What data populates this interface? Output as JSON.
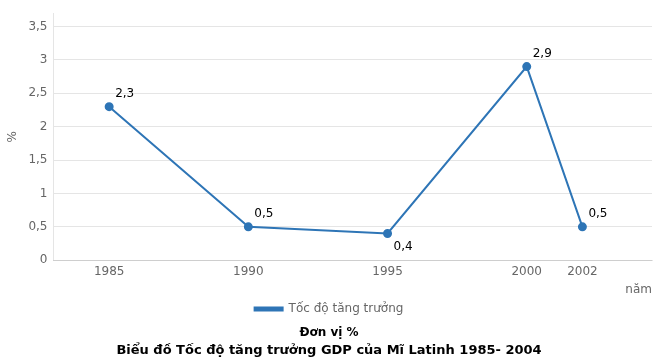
{
  "chart_data": {
    "type": "line",
    "title": "Biểu đồ Tốc độ tăng trưởng GDP của Mĩ Latinh 1985- 2004",
    "subtitle": "Đơn vị %",
    "xlabel": "năm",
    "ylabel": "%",
    "x": [
      1985,
      1990,
      1995,
      2000,
      2002
    ],
    "series": [
      {
        "name": "Tốc độ tăng trưởng",
        "color": "#2E75B6",
        "marker": "circle",
        "values": [
          2.3,
          0.5,
          0.4,
          2.9,
          0.5
        ],
        "value_labels": [
          "2,3",
          "0,5",
          "0,4",
          "2,9",
          "0,5"
        ]
      }
    ],
    "data_labels": true,
    "xlim": [
      1983,
      2004.5
    ],
    "xticks": [
      1985,
      1990,
      1995,
      2000,
      2002
    ],
    "ylim": [
      0,
      3.7
    ],
    "yticks": [
      0,
      {
        "value": 0.5,
        "label": "0,5"
      },
      1,
      {
        "value": 1.5,
        "label": "1,5"
      },
      2,
      {
        "value": 2.5,
        "label": "2,5"
      },
      3,
      {
        "value": 3.5,
        "label": "3,5"
      }
    ],
    "grid": "y",
    "legend": "bottom"
  }
}
